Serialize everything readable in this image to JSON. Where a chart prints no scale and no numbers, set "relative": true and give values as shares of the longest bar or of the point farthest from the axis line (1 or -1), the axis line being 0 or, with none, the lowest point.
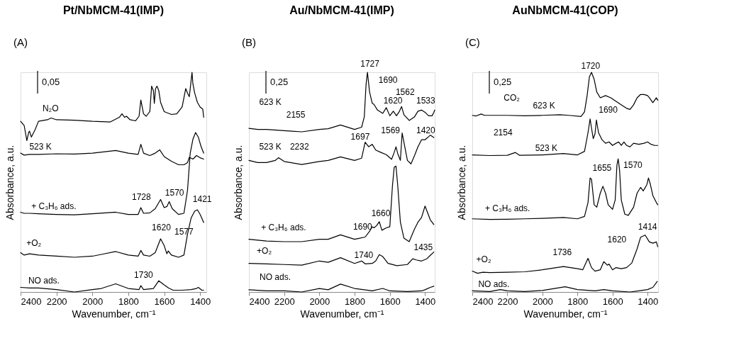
{
  "chart_data": [
    {
      "type": "line",
      "relative": true,
      "title": "Pt/NbMCM-41(IMP)",
      "xlabel": "Wavenumber, cm⁻¹",
      "ylabel": "Absorbance, a.u.",
      "xlim": [
        2400,
        1365
      ],
      "xticks": [
        2400,
        2200,
        2000,
        1800,
        1600,
        1400
      ],
      "marker": "none",
      "line_style": "solid",
      "annotations": [
        "(A)",
        "0,05",
        "N₂O",
        "523 K",
        "1728",
        "1570",
        "1421",
        "+ C₃H₆ ads.",
        "1620",
        "1577",
        "+O₂",
        "1730",
        "NO ads."
      ],
      "series": [
        {
          "color": "#000000",
          "x": [
            2400,
            2350,
            2300,
            2200,
            2100,
            2000,
            1950,
            1870,
            1800,
            1740,
            1730,
            1715,
            1660,
            1630,
            1600,
            1575,
            1550,
            1500,
            1450,
            1420,
            1410,
            1390,
            1380
          ],
          "values": [
            0.021,
            0.018,
            0.018,
            0.011,
            0,
            0.011,
            0.016,
            0.037,
            0.016,
            0.011,
            0.029,
            0.011,
            0.016,
            0.051,
            0.032,
            0.018,
            0.008,
            0.008,
            0.011,
            0.016,
            0.021,
            0.008,
            0.008
          ]
        },
        {
          "color": "#000000",
          "x": [
            2400,
            2380,
            2350,
            2300,
            2200,
            2100,
            2000,
            1950,
            1870,
            1800,
            1745,
            1730,
            1715,
            1680,
            1650,
            1620,
            1600,
            1585,
            1577,
            1560,
            1520,
            1490,
            1470,
            1450,
            1430,
            1415,
            1400,
            1385,
            1380
          ],
          "values": [
            0.179,
            0.168,
            0.174,
            0.168,
            0.163,
            0.158,
            0.163,
            0.171,
            0.184,
            0.168,
            0.163,
            0.189,
            0.168,
            0.163,
            0.179,
            0.242,
            0.211,
            0.174,
            0.187,
            0.168,
            0.158,
            0.168,
            0.263,
            0.337,
            0.368,
            0.374,
            0.353,
            0.326,
            0.316
          ]
        },
        {
          "color": "#000000",
          "x": [
            2400,
            2380,
            2350,
            2300,
            2200,
            2100,
            2000,
            1870,
            1800,
            1745,
            1730,
            1715,
            1680,
            1650,
            1620,
            1600,
            1585,
            1572,
            1555,
            1520,
            1490,
            1470,
            1455,
            1440,
            1425,
            1410,
            1395,
            1380
          ],
          "values": [
            0.363,
            0.358,
            0.358,
            0.356,
            0.353,
            0.351,
            0.356,
            0.363,
            0.353,
            0.353,
            0.384,
            0.358,
            0.36,
            0.379,
            0.421,
            0.384,
            0.389,
            0.411,
            0.379,
            0.353,
            0.358,
            0.463,
            0.632,
            0.695,
            0.726,
            0.705,
            0.663,
            0.632
          ]
        },
        {
          "color": "#000000",
          "x": [
            2400,
            2380,
            2350,
            2300,
            2200,
            2100,
            2000,
            1870,
            1800,
            1745,
            1730,
            1715,
            1680,
            1650,
            1625,
            1600,
            1560,
            1520,
            1490,
            1470,
            1460,
            1440,
            1420,
            1400,
            1380
          ],
          "values": [
            0.632,
            0.623,
            0.626,
            0.626,
            0.629,
            0.628,
            0.632,
            0.644,
            0.632,
            0.626,
            0.672,
            0.632,
            0.621,
            0.632,
            0.647,
            0.616,
            0.595,
            0.579,
            0.579,
            0.589,
            0.613,
            0.605,
            0.621,
            0.611,
            0.605
          ]
        },
        {
          "color": "#000000",
          "x": [
            2400,
            2380,
            2365,
            2355,
            2350,
            2340,
            2320,
            2300,
            2250,
            2230,
            2200,
            2100,
            2000,
            1900,
            1850,
            1835,
            1820,
            1810,
            1790,
            1760,
            1740,
            1730,
            1715,
            1700,
            1680,
            1670,
            1660,
            1655,
            1648,
            1640,
            1630,
            1620,
            1600,
            1560,
            1530,
            1500,
            1480,
            1470,
            1460,
            1452,
            1445,
            1440,
            1430,
            1415,
            1400,
            1385,
            1380
          ],
          "values": [
            0.777,
            0.758,
            0.689,
            0.726,
            0.732,
            0.705,
            0.737,
            0.777,
            0.784,
            0.792,
            0.784,
            0.782,
            0.777,
            0.774,
            0.795,
            0.811,
            0.795,
            0.8,
            0.784,
            0.779,
            0.8,
            0.874,
            0.811,
            0.8,
            0.821,
            0.937,
            0.916,
            0.858,
            0.926,
            0.937,
            0.916,
            0.863,
            0.821,
            0.808,
            0.811,
            0.842,
            0.926,
            0.905,
            0.889,
            0.947,
            1,
            0.947,
            0.905,
            0.863,
            0.842,
            0.832,
            0.795
          ]
        }
      ]
    },
    {
      "type": "line",
      "relative": true,
      "title": "Au/NbMCM-41(IMP)",
      "xlabel": "Wavenumber, cm⁻¹",
      "ylabel": "Absorbance, a.u.",
      "xlim": [
        2400,
        1345
      ],
      "xticks": [
        2400,
        2200,
        2000,
        1800,
        1600,
        1400
      ],
      "marker": "none",
      "line_style": "solid",
      "annotations": [
        "(B)",
        "0,25",
        "1727",
        "1690",
        "1562",
        "1620",
        "1533",
        "623 K",
        "2155",
        "1697",
        "1569",
        "1420",
        "523 K",
        "2232",
        "1660",
        "1690",
        "+ C₃H₆ ads.",
        "+O₂",
        "1740",
        "1435",
        "NO ads."
      ],
      "series": [
        {
          "color": "#000000",
          "x": [
            2400,
            2300,
            2200,
            2100,
            2000,
            1950,
            1880,
            1800,
            1700,
            1640,
            1600,
            1500,
            1420,
            1400,
            1370,
            1350
          ],
          "values": [
            0.01,
            0.005,
            0.005,
            0,
            0.016,
            0.01,
            0.036,
            0.016,
            0.005,
            0.016,
            0.005,
            0.002,
            0.005,
            0.01,
            0.021,
            0.026
          ]
        },
        {
          "color": "#000000",
          "x": [
            2400,
            2300,
            2200,
            2100,
            2000,
            1950,
            1880,
            1800,
            1760,
            1740,
            1700,
            1680,
            1660,
            1640,
            1610,
            1560,
            1500,
            1470,
            1450,
            1420,
            1390,
            1370,
            1350
          ],
          "values": [
            0.13,
            0.128,
            0.125,
            0.122,
            0.141,
            0.135,
            0.156,
            0.13,
            0.141,
            0.128,
            0.13,
            0.141,
            0.17,
            0.161,
            0.13,
            0.12,
            0.125,
            0.151,
            0.146,
            0.141,
            0.151,
            0.167,
            0.182
          ]
        },
        {
          "color": "#000000",
          "x": [
            2400,
            2300,
            2200,
            2100,
            2000,
            1950,
            1880,
            1800,
            1740,
            1715,
            1700,
            1690,
            1675,
            1660,
            1645,
            1620,
            1600,
            1585,
            1575,
            1565,
            1555,
            1540,
            1520,
            1490,
            1460,
            1440,
            1420,
            1400,
            1390,
            1370,
            1350
          ],
          "values": [
            0.24,
            0.232,
            0.229,
            0.229,
            0.24,
            0.24,
            0.26,
            0.24,
            0.25,
            0.276,
            0.297,
            0.292,
            0.302,
            0.32,
            0.281,
            0.292,
            0.297,
            0.484,
            0.568,
            0.573,
            0.484,
            0.318,
            0.245,
            0.229,
            0.286,
            0.318,
            0.339,
            0.391,
            0.37,
            0.328,
            0.307
          ]
        },
        {
          "color": "#000000",
          "x": [
            2400,
            2350,
            2300,
            2250,
            2232,
            2200,
            2100,
            2000,
            1950,
            1880,
            1800,
            1760,
            1740,
            1720,
            1700,
            1680,
            1650,
            1620,
            1590,
            1575,
            1565,
            1555,
            1540,
            1530,
            1520,
            1500,
            1480,
            1460,
            1440,
            1420,
            1400,
            1385,
            1370,
            1350
          ],
          "values": [
            0.599,
            0.589,
            0.589,
            0.599,
            0.611,
            0.594,
            0.58,
            0.594,
            0.599,
            0.615,
            0.599,
            0.609,
            0.682,
            0.661,
            0.672,
            0.646,
            0.635,
            0.625,
            0.604,
            0.635,
            0.661,
            0.63,
            0.599,
            0.724,
            0.682,
            0.599,
            0.583,
            0.62,
            0.661,
            0.693,
            0.693,
            0.703,
            0.714,
            0.703
          ]
        },
        {
          "color": "#000000",
          "x": [
            2400,
            2350,
            2300,
            2200,
            2155,
            2100,
            2000,
            1950,
            1880,
            1800,
            1760,
            1745,
            1735,
            1727,
            1715,
            1700,
            1690,
            1670,
            1640,
            1620,
            1600,
            1580,
            1562,
            1545,
            1533,
            1520,
            1490,
            1460,
            1440,
            1420,
            1400,
            1380,
            1360,
            1350,
            1345
          ],
          "values": [
            0.745,
            0.74,
            0.74,
            0.734,
            0.732,
            0.729,
            0.74,
            0.743,
            0.76,
            0.74,
            0.75,
            0.797,
            0.943,
            1,
            0.911,
            0.859,
            0.854,
            0.828,
            0.813,
            0.839,
            0.802,
            0.823,
            0.802,
            0.823,
            0.844,
            0.807,
            0.781,
            0.797,
            0.823,
            0.828,
            0.818,
            0.802,
            0.802,
            0.818,
            0.828
          ]
        }
      ]
    },
    {
      "type": "line",
      "relative": true,
      "title": "AuNbMCM-41(COP)",
      "xlabel": "Wavenumber, cm⁻¹",
      "ylabel": "Absorbance, a.u.",
      "xlim": [
        2400,
        1340
      ],
      "xticks": [
        2400,
        2200,
        2000,
        1800,
        1600,
        1400
      ],
      "marker": "none",
      "line_style": "solid",
      "annotations": [
        "(C)",
        "0,25",
        "CO₂",
        "1720",
        "623 K",
        "1690",
        "2154",
        "523 K",
        "1655",
        "1570",
        "+ C₃H₆ ads.",
        "1414",
        "1620",
        "1736",
        "+O₂",
        "NO ads."
      ],
      "series": [
        {
          "color": "#000000",
          "x": [
            2400,
            2300,
            2240,
            2200,
            2100,
            2000,
            1870,
            1800,
            1700,
            1650,
            1600,
            1500,
            1450,
            1400,
            1370,
            1345
          ],
          "values": [
            0.005,
            0.002,
            0.011,
            0.005,
            0.002,
            0.007,
            0.024,
            0.011,
            0.005,
            0.011,
            0.005,
            0,
            0.005,
            0.011,
            0.021,
            0.048
          ]
        },
        {
          "color": "#000000",
          "x": [
            2400,
            2370,
            2340,
            2300,
            2200,
            2100,
            2000,
            1880,
            1800,
            1770,
            1740,
            1720,
            1700,
            1670,
            1650,
            1630,
            1620,
            1600,
            1580,
            1550,
            1520,
            1490,
            1460,
            1440,
            1414,
            1390,
            1370,
            1350,
            1342
          ],
          "values": [
            0.095,
            0.085,
            0.09,
            0.088,
            0.09,
            0.092,
            0.101,
            0.116,
            0.106,
            0.101,
            0.153,
            0.111,
            0.095,
            0.101,
            0.138,
            0.122,
            0.127,
            0.101,
            0.111,
            0.106,
            0.111,
            0.132,
            0.196,
            0.249,
            0.259,
            0.228,
            0.222,
            0.228,
            0.206
          ]
        },
        {
          "color": "#000000",
          "x": [
            2400,
            2300,
            2200,
            2100,
            2000,
            1880,
            1800,
            1760,
            1740,
            1728,
            1720,
            1705,
            1690,
            1670,
            1655,
            1640,
            1625,
            1600,
            1585,
            1575,
            1568,
            1560,
            1550,
            1530,
            1510,
            1480,
            1460,
            1440,
            1425,
            1405,
            1395,
            1385,
            1370,
            1350,
            1342
          ],
          "values": [
            0.333,
            0.33,
            0.331,
            0.333,
            0.335,
            0.339,
            0.333,
            0.344,
            0.407,
            0.519,
            0.513,
            0.397,
            0.386,
            0.45,
            0.481,
            0.45,
            0.397,
            0.376,
            0.418,
            0.577,
            0.606,
            0.556,
            0.418,
            0.354,
            0.349,
            0.386,
            0.45,
            0.476,
            0.46,
            0.487,
            0.519,
            0.492,
            0.439,
            0.407,
            0.397
          ]
        },
        {
          "color": "#000000",
          "x": [
            2400,
            2300,
            2200,
            2154,
            2130,
            2000,
            1880,
            1800,
            1760,
            1740,
            1728,
            1720,
            1710,
            1700,
            1692,
            1680,
            1660,
            1640,
            1620,
            1600,
            1580,
            1565,
            1550,
            1535,
            1520,
            1500,
            1480,
            1450,
            1420,
            1400,
            1380,
            1360,
            1342
          ],
          "values": [
            0.624,
            0.621,
            0.622,
            0.635,
            0.622,
            0.624,
            0.63,
            0.624,
            0.64,
            0.725,
            0.788,
            0.746,
            0.698,
            0.72,
            0.783,
            0.725,
            0.693,
            0.677,
            0.683,
            0.667,
            0.677,
            0.683,
            0.667,
            0.683,
            0.667,
            0.661,
            0.677,
            0.672,
            0.677,
            0.683,
            0.672,
            0.667,
            0.667
          ]
        },
        {
          "color": "#000000",
          "x": [
            2400,
            2380,
            2350,
            2330,
            2300,
            2200,
            2100,
            2000,
            1900,
            1850,
            1780,
            1760,
            1745,
            1732,
            1720,
            1705,
            1690,
            1670,
            1640,
            1610,
            1580,
            1550,
            1520,
            1500,
            1480,
            1460,
            1440,
            1420,
            1400,
            1390,
            1370,
            1350,
            1342
          ],
          "values": [
            0.804,
            0.801,
            0.81,
            0.804,
            0.804,
            0.804,
            0.802,
            0.804,
            0.807,
            0.804,
            0.799,
            0.82,
            0.894,
            0.979,
            1,
            0.968,
            0.91,
            0.884,
            0.894,
            0.884,
            0.868,
            0.852,
            0.836,
            0.831,
            0.852,
            0.884,
            0.899,
            0.899,
            0.894,
            0.884,
            0.862,
            0.884,
            0.873
          ]
        }
      ]
    }
  ]
}
